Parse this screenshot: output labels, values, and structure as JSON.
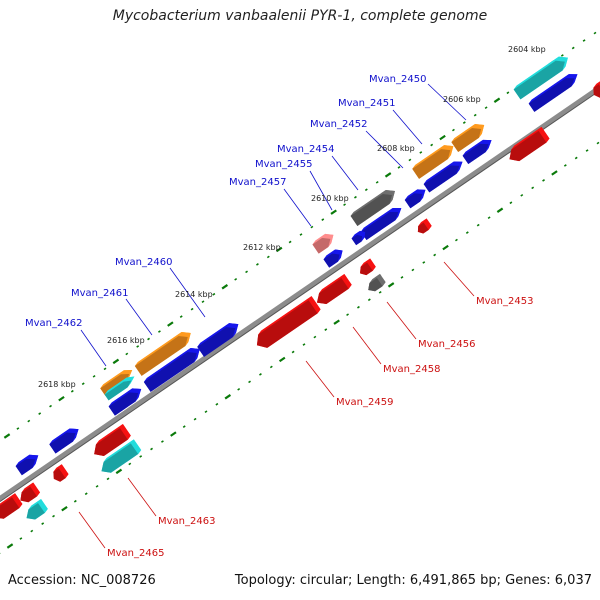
{
  "title": "Mycobacterium vanbaalenii PYR-1, complete genome",
  "footer": {
    "accession": "Accession: NC_008726",
    "summary": "Topology: circular; Length: 6,491,865 bp; Genes: 6,037"
  },
  "colors": {
    "backbone": "#8c8c8c",
    "tick": "#0a7a0a",
    "forward_cds": "#1414d6",
    "reverse_cds": "#e01010",
    "orange_gene": "#f08c1c",
    "cyan_gene": "#20c8c8",
    "gray_gene": "#646464",
    "pink_gene": "#f08080",
    "fwd_label": "#1010cc",
    "rev_label": "#cc1010"
  },
  "scale_labels": [
    "2604 kbp",
    "2606 kbp",
    "2608 kbp",
    "2610 kbp",
    "2612 kbp",
    "2614 kbp",
    "2616 kbp",
    "2618 kbp"
  ],
  "forward_labels": [
    "Mvan_2450",
    "Mvan_2451",
    "Mvan_2452",
    "Mvan_2454",
    "Mvan_2455",
    "Mvan_2457",
    "Mvan_2460",
    "Mvan_2461",
    "Mvan_2462"
  ],
  "reverse_labels": [
    "Mvan_2453",
    "Mvan_2456",
    "Mvan_2458",
    "Mvan_2459",
    "Mvan_2463",
    "Mvan_2465"
  ]
}
